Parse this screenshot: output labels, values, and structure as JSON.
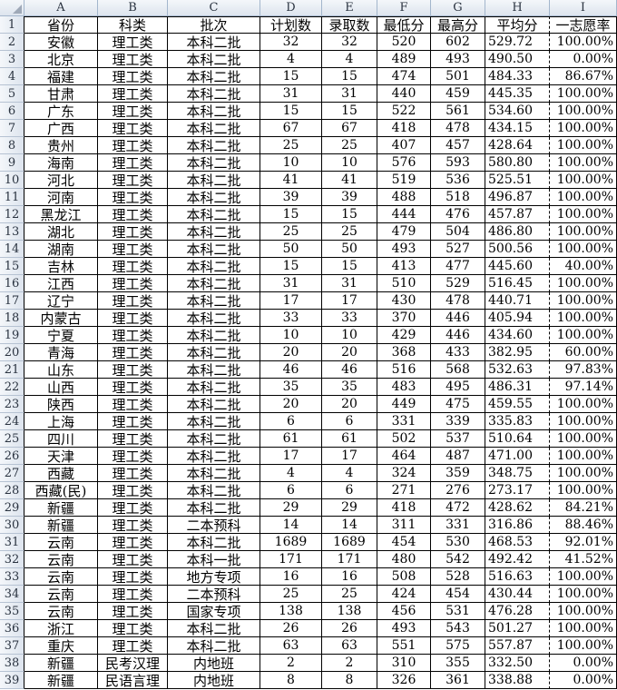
{
  "sheet": {
    "column_letters": [
      "A",
      "B",
      "C",
      "D",
      "E",
      "F",
      "G",
      "H",
      "I"
    ],
    "row_numbers": [
      "1",
      "2",
      "3",
      "4",
      "5",
      "6",
      "7",
      "8",
      "9",
      "10",
      "11",
      "12",
      "13",
      "14",
      "15",
      "16",
      "17",
      "18",
      "19",
      "20",
      "21",
      "22",
      "23",
      "24",
      "25",
      "26",
      "27",
      "28",
      "29",
      "30",
      "31",
      "32",
      "33",
      "34",
      "35",
      "36",
      "37",
      "38",
      "39"
    ]
  },
  "table": {
    "headers": [
      "省份",
      "科类",
      "批次",
      "计划数",
      "录取数",
      "最低分",
      "最高分",
      "平均分",
      "一志愿率"
    ],
    "rows": [
      [
        "安徽",
        "理工类",
        "本科二批",
        "32",
        "32",
        "520",
        "602",
        "529.72",
        "100.00%"
      ],
      [
        "北京",
        "理工类",
        "本科二批",
        "4",
        "4",
        "489",
        "493",
        "490.50",
        "0.00%"
      ],
      [
        "福建",
        "理工类",
        "本科二批",
        "15",
        "15",
        "474",
        "501",
        "484.33",
        "86.67%"
      ],
      [
        "甘肃",
        "理工类",
        "本科二批",
        "31",
        "31",
        "440",
        "459",
        "445.35",
        "100.00%"
      ],
      [
        "广东",
        "理工类",
        "本科二批",
        "15",
        "15",
        "522",
        "561",
        "534.60",
        "100.00%"
      ],
      [
        "广西",
        "理工类",
        "本科二批",
        "67",
        "67",
        "418",
        "478",
        "434.15",
        "100.00%"
      ],
      [
        "贵州",
        "理工类",
        "本科二批",
        "25",
        "25",
        "407",
        "457",
        "428.64",
        "100.00%"
      ],
      [
        "海南",
        "理工类",
        "本科二批",
        "10",
        "10",
        "576",
        "593",
        "580.80",
        "100.00%"
      ],
      [
        "河北",
        "理工类",
        "本科二批",
        "41",
        "41",
        "519",
        "536",
        "525.51",
        "100.00%"
      ],
      [
        "河南",
        "理工类",
        "本科二批",
        "39",
        "39",
        "488",
        "518",
        "496.87",
        "100.00%"
      ],
      [
        "黑龙江",
        "理工类",
        "本科二批",
        "15",
        "15",
        "444",
        "476",
        "457.87",
        "100.00%"
      ],
      [
        "湖北",
        "理工类",
        "本科二批",
        "25",
        "25",
        "479",
        "504",
        "486.80",
        "100.00%"
      ],
      [
        "湖南",
        "理工类",
        "本科二批",
        "50",
        "50",
        "493",
        "527",
        "500.56",
        "100.00%"
      ],
      [
        "吉林",
        "理工类",
        "本科二批",
        "15",
        "15",
        "413",
        "477",
        "445.60",
        "40.00%"
      ],
      [
        "江西",
        "理工类",
        "本科二批",
        "31",
        "31",
        "510",
        "529",
        "516.45",
        "100.00%"
      ],
      [
        "辽宁",
        "理工类",
        "本科二批",
        "17",
        "17",
        "430",
        "478",
        "440.71",
        "100.00%"
      ],
      [
        "内蒙古",
        "理工类",
        "本科二批",
        "33",
        "33",
        "370",
        "446",
        "405.94",
        "100.00%"
      ],
      [
        "宁夏",
        "理工类",
        "本科二批",
        "10",
        "10",
        "429",
        "446",
        "434.60",
        "100.00%"
      ],
      [
        "青海",
        "理工类",
        "本科二批",
        "20",
        "20",
        "368",
        "433",
        "382.95",
        "60.00%"
      ],
      [
        "山东",
        "理工类",
        "本科二批",
        "46",
        "46",
        "516",
        "568",
        "532.63",
        "97.83%"
      ],
      [
        "山西",
        "理工类",
        "本科二批",
        "35",
        "35",
        "483",
        "495",
        "486.31",
        "97.14%"
      ],
      [
        "陕西",
        "理工类",
        "本科二批",
        "20",
        "20",
        "449",
        "475",
        "459.55",
        "100.00%"
      ],
      [
        "上海",
        "理工类",
        "本科二批",
        "6",
        "6",
        "331",
        "339",
        "335.83",
        "100.00%"
      ],
      [
        "四川",
        "理工类",
        "本科二批",
        "61",
        "61",
        "502",
        "537",
        "510.64",
        "100.00%"
      ],
      [
        "天津",
        "理工类",
        "本科二批",
        "17",
        "17",
        "464",
        "487",
        "471.00",
        "100.00%"
      ],
      [
        "西藏",
        "理工类",
        "本科二批",
        "4",
        "4",
        "324",
        "359",
        "348.75",
        "100.00%"
      ],
      [
        "西藏(民)",
        "理工类",
        "本科二批",
        "6",
        "6",
        "271",
        "276",
        "273.17",
        "100.00%"
      ],
      [
        "新疆",
        "理工类",
        "本科二批",
        "29",
        "29",
        "418",
        "472",
        "428.62",
        "84.21%"
      ],
      [
        "新疆",
        "理工类",
        "二本预科",
        "14",
        "14",
        "311",
        "331",
        "316.86",
        "88.46%"
      ],
      [
        "云南",
        "理工类",
        "本科二批",
        "1689",
        "1689",
        "454",
        "530",
        "468.53",
        "92.01%"
      ],
      [
        "云南",
        "理工类",
        "本科一批",
        "171",
        "171",
        "480",
        "542",
        "492.42",
        "41.52%"
      ],
      [
        "云南",
        "理工类",
        "地方专项",
        "16",
        "16",
        "508",
        "528",
        "516.63",
        "100.00%"
      ],
      [
        "云南",
        "理工类",
        "二本预科",
        "25",
        "25",
        "424",
        "454",
        "430.44",
        "100.00%"
      ],
      [
        "云南",
        "理工类",
        "国家专项",
        "138",
        "138",
        "456",
        "531",
        "476.28",
        "100.00%"
      ],
      [
        "浙江",
        "理工类",
        "本科二批",
        "26",
        "26",
        "493",
        "543",
        "501.27",
        "100.00%"
      ],
      [
        "重庆",
        "理工类",
        "本科二批",
        "63",
        "63",
        "551",
        "575",
        "557.87",
        "100.00%"
      ],
      [
        "新疆",
        "民考汉理",
        "内地班",
        "2",
        "2",
        "310",
        "355",
        "332.50",
        "0.00%"
      ],
      [
        "新疆",
        "民语言理",
        "内地班",
        "8",
        "8",
        "326",
        "361",
        "338.88",
        "0.00%"
      ]
    ]
  },
  "colors": {
    "grid_line": "#000000",
    "page_break_line_style": "dashed",
    "header_bg_top": "#f4f7fa",
    "header_bg_bottom": "#dde4ee",
    "header_border": "#a3b6cc",
    "header_text": "#2a3340",
    "cell_bg": "#ffffff",
    "cell_text": "#000000"
  }
}
